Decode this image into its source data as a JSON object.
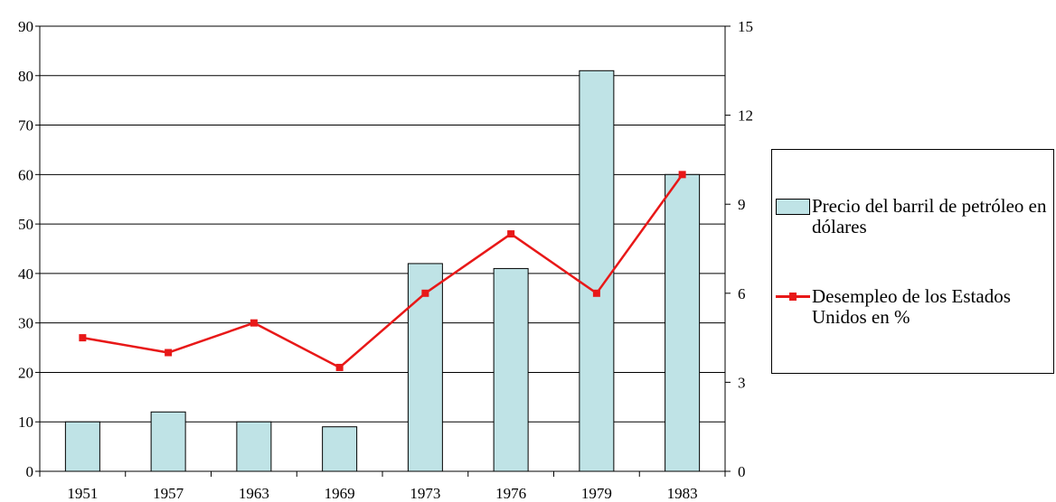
{
  "chart_data": {
    "type": "bar",
    "categories": [
      "1951",
      "1957",
      "1963",
      "1969",
      "1973",
      "1976",
      "1979",
      "1983"
    ],
    "series": [
      {
        "name": "Precio del barril de petróleo en dólares",
        "type": "bar",
        "axis": "left",
        "values": [
          10,
          12,
          10,
          9,
          42,
          41,
          81,
          60
        ],
        "color": "#bfe3e6"
      },
      {
        "name": "Desempleo de los Estados Unidos en %",
        "type": "line",
        "axis": "right",
        "values": [
          4.5,
          4.0,
          5.0,
          3.5,
          6.0,
          8.0,
          6.0,
          10.0
        ],
        "color": "#e81818"
      }
    ],
    "y_left": {
      "min": 0,
      "max": 90,
      "ticks": [
        "0",
        "10",
        "20",
        "30",
        "40",
        "50",
        "60",
        "70",
        "80",
        "90"
      ]
    },
    "y_right": {
      "min": 0,
      "max": 15,
      "ticks": [
        "0",
        "3",
        "6",
        "9",
        "12",
        "15"
      ]
    },
    "grid": true,
    "legend_position": "right",
    "title": "",
    "xlabel": "",
    "ylabel": ""
  }
}
